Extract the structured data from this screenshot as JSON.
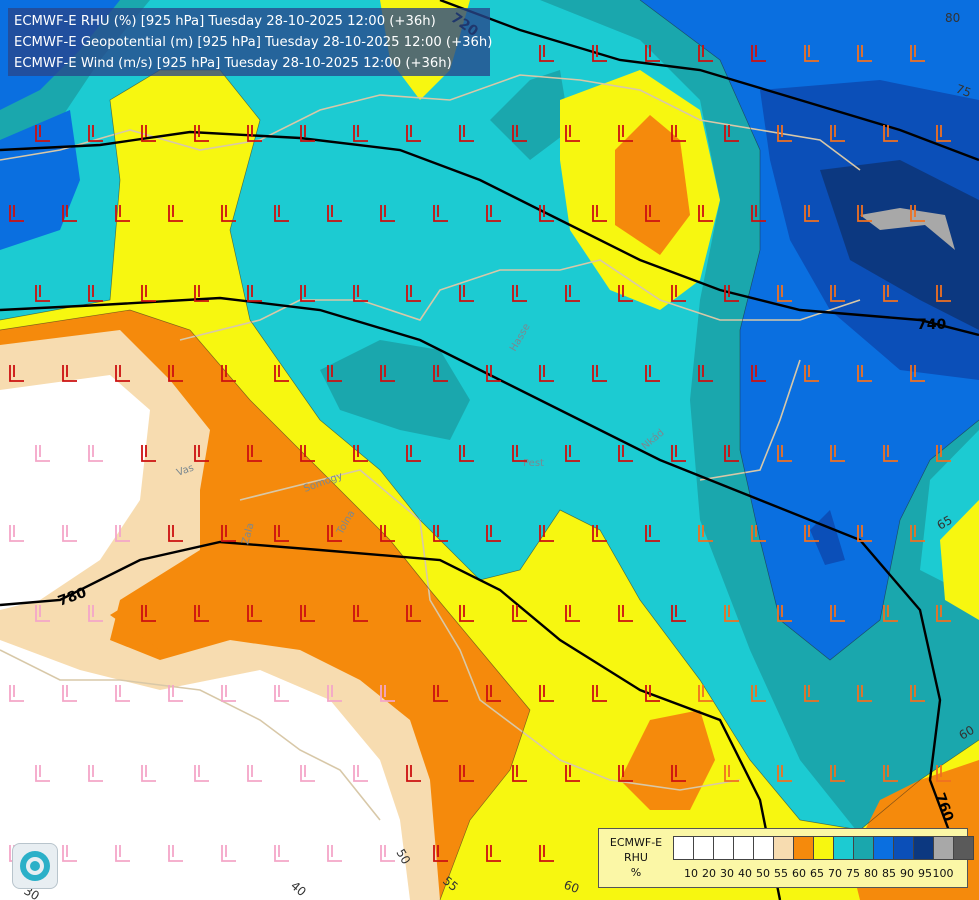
{
  "header": {
    "lines": [
      "ECMWF-E RHU (%) [925 hPa] Tuesday 28-10-2025 12:00 (+36h)",
      "ECMWF-E Geopotential (m) [925 hPa] Tuesday 28-10-2025 12:00 (+36h)",
      "ECMWF-E Wind (m/s) [925 hPa] Tuesday 28-10-2025 12:00 (+36h)"
    ]
  },
  "legend": {
    "title_lines": [
      "ECMWF-E",
      "RHU",
      "%"
    ],
    "bins": [
      {
        "label": "10",
        "color": "#ffffff"
      },
      {
        "label": "20",
        "color": "#ffffff"
      },
      {
        "label": "30",
        "color": "#ffffff"
      },
      {
        "label": "40",
        "color": "#ffffff"
      },
      {
        "label": "50",
        "color": "#ffffff"
      },
      {
        "label": "55",
        "color": "#f7dcb0"
      },
      {
        "label": "60",
        "color": "#f58a0c"
      },
      {
        "label": "65",
        "color": "#f7f710"
      },
      {
        "label": "70",
        "color": "#1ccbd2"
      },
      {
        "label": "75",
        "color": "#1aa7ad"
      },
      {
        "label": "80",
        "color": "#0a6fe0"
      },
      {
        "label": "85",
        "color": "#0b4fb8"
      },
      {
        "label": "90",
        "color": "#0c3880"
      },
      {
        "label": "95",
        "color": "#a8a8a8"
      },
      {
        "label": "100",
        "color": "#5a5a5a"
      }
    ]
  },
  "geopotential_labels": [
    "720",
    "740",
    "760",
    "780"
  ],
  "rhu_contour_labels": [
    "80",
    "75",
    "65",
    "60",
    "60",
    "55",
    "50",
    "40",
    "30"
  ],
  "river_labels": [
    "Hasse",
    "Vas",
    "Zala",
    "Somogy",
    "Tolna",
    "Pest",
    "Nkád"
  ],
  "colors": {
    "wind_barb_dry": "#cc1010",
    "wind_barb_moist": "#f07020",
    "wind_barb_white": "#f4a6c8",
    "geopotential_line": "#000000",
    "border_line": "#d8c8a8"
  }
}
